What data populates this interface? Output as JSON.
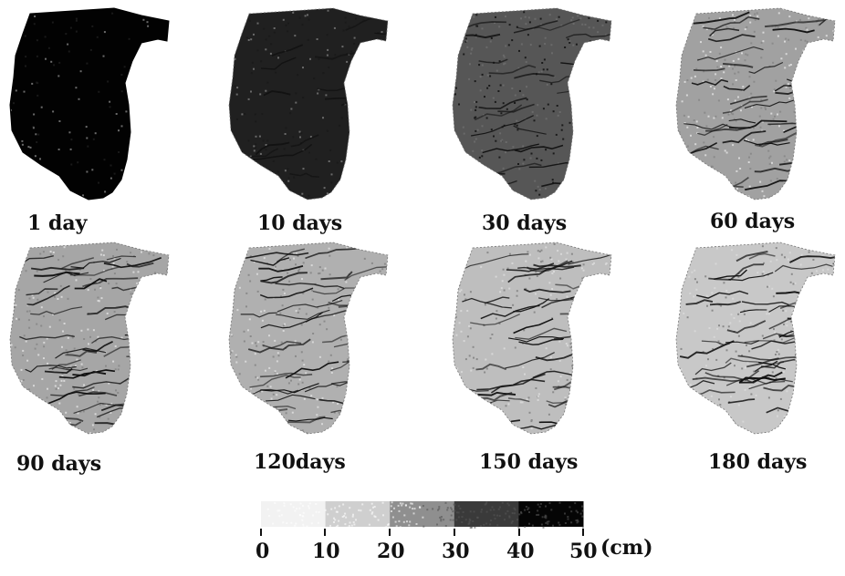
{
  "panels": [
    {
      "label": "1 day",
      "depth_cm": 50
    },
    {
      "label": "10 days",
      "depth_cm": 44
    },
    {
      "label": "30 days",
      "depth_cm": 33
    },
    {
      "label": "60 days",
      "depth_cm": 18
    },
    {
      "label": "90 days",
      "depth_cm": 17
    },
    {
      "label": "120days",
      "depth_cm": 15
    },
    {
      "label": "150 days",
      "depth_cm": 12
    },
    {
      "label": "180 days",
      "depth_cm": 10
    }
  ],
  "legend": {
    "ticks": [
      "0",
      "10",
      "20",
      "30",
      "40",
      "50"
    ],
    "unit": "(cm)",
    "colors": [
      "#ffffff",
      "#f2f2f2",
      "#cfcfcf",
      "#8f8f8f",
      "#3a3a3a",
      "#050505"
    ]
  }
}
